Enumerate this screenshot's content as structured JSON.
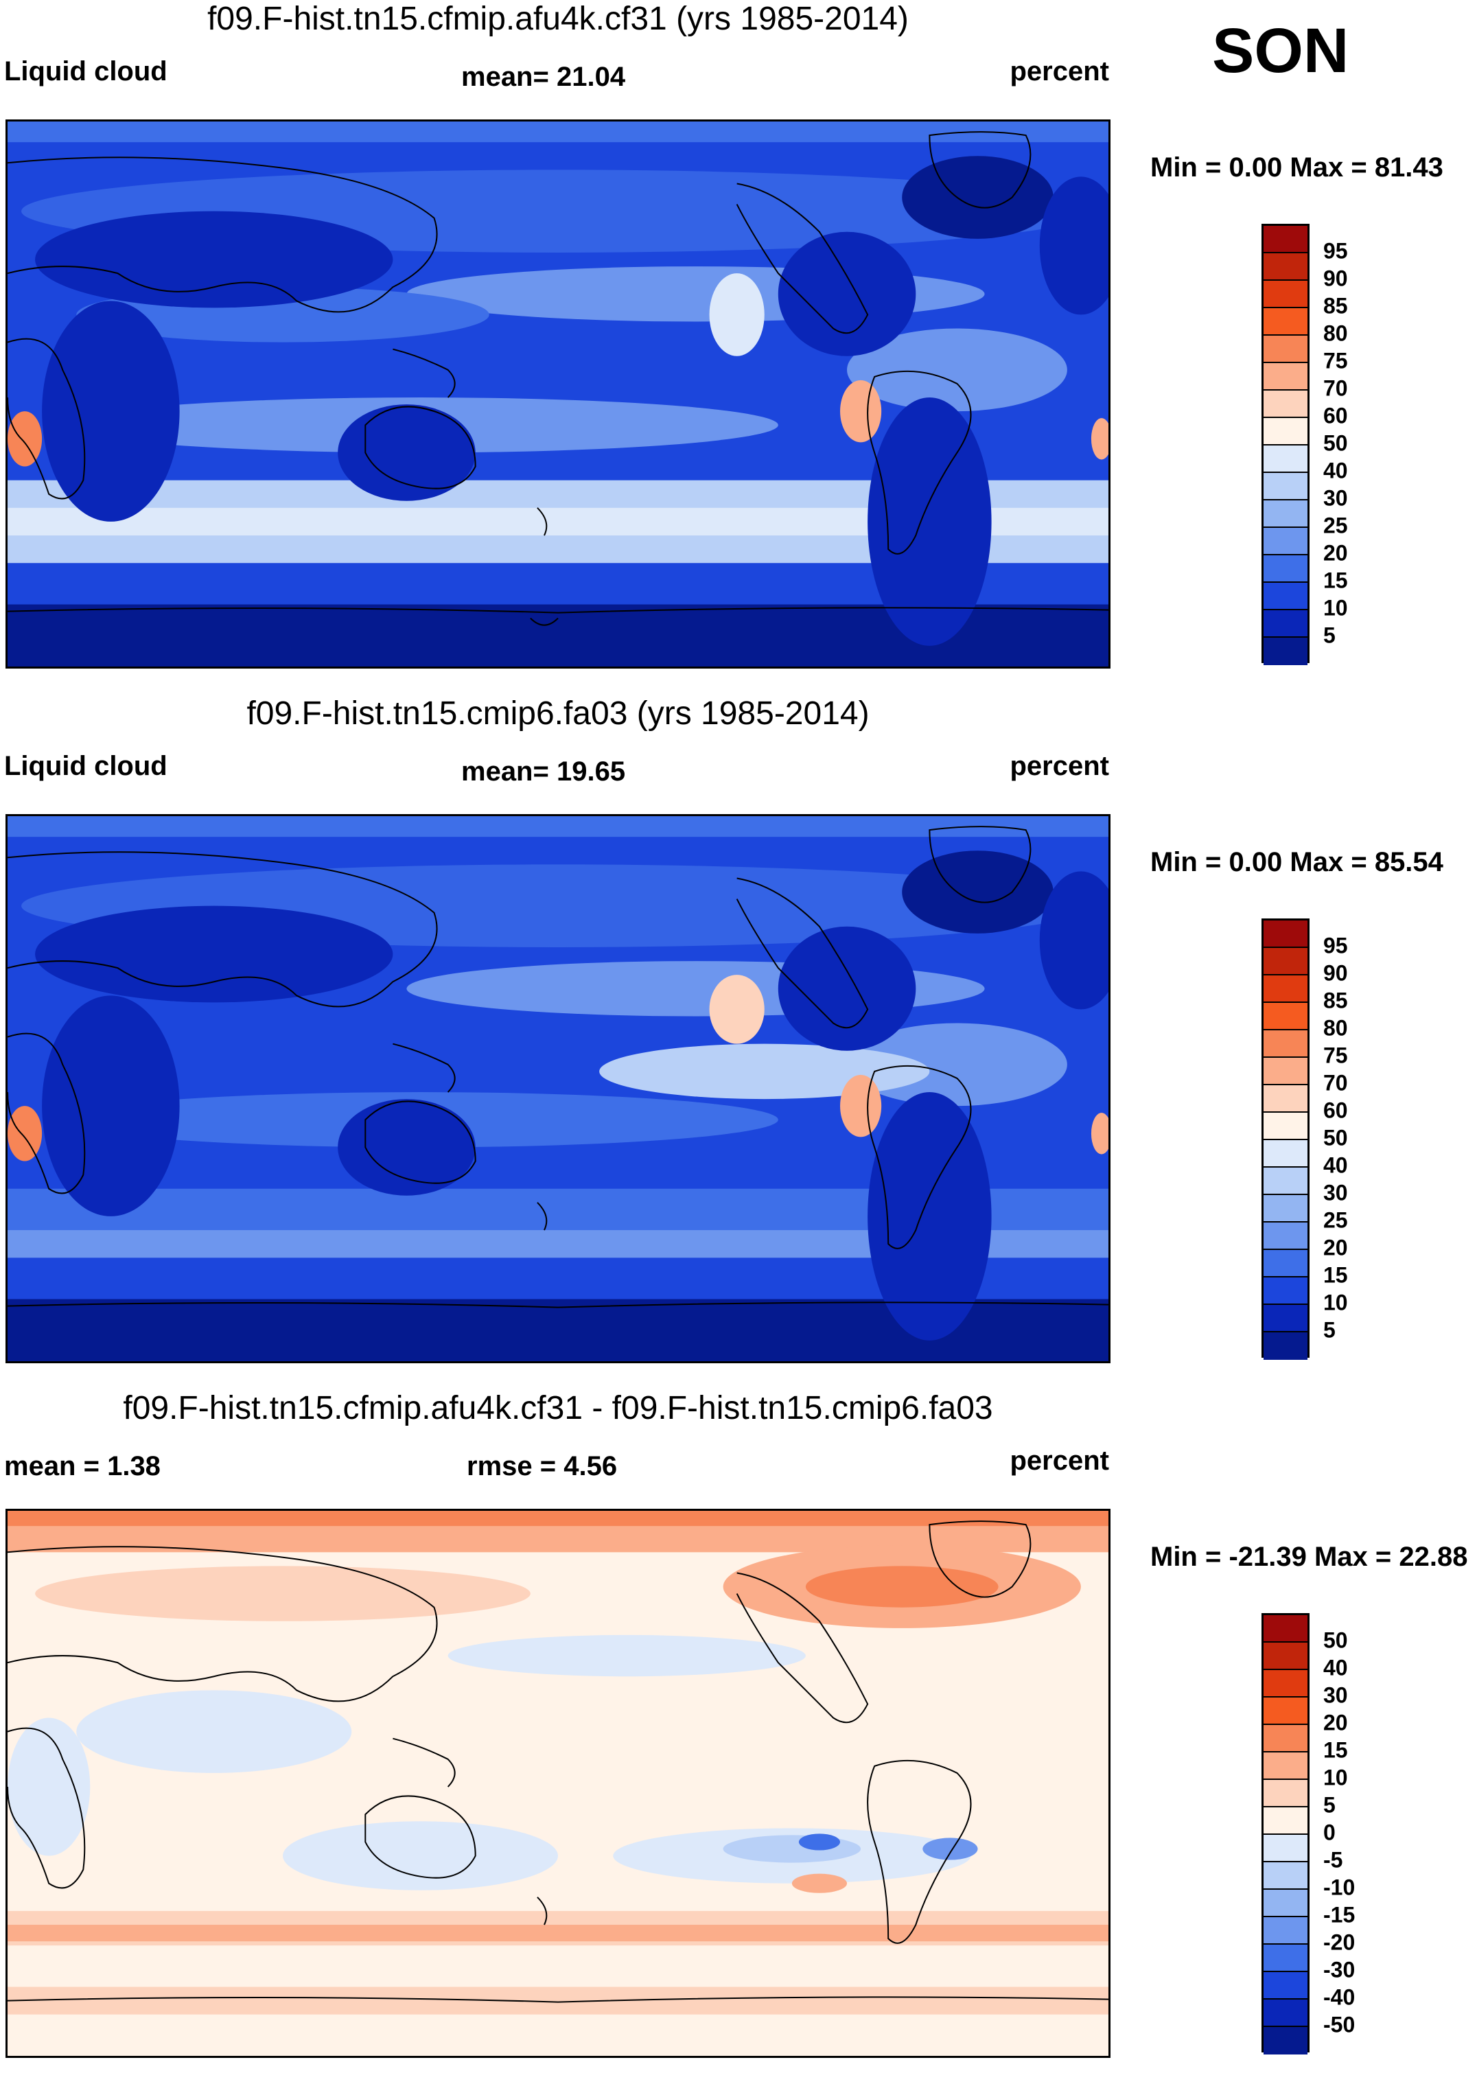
{
  "season": "SON",
  "panels": [
    {
      "title": "f09.F-hist.tn15.cfmip.afu4k.cf31 (yrs 1985-2014)",
      "left_label": "Liquid cloud",
      "center_label": "mean=  21.04",
      "units": "percent",
      "minmax": "Min =    0.00 Max =  81.43",
      "colorbar": {
        "labels": [
          "95",
          "90",
          "85",
          "80",
          "75",
          "70",
          "60",
          "50",
          "40",
          "30",
          "25",
          "20",
          "15",
          "10",
          "5"
        ],
        "colors": [
          "#9e0a0a",
          "#c1250b",
          "#e03b10",
          "#f55b20",
          "#f78556",
          "#fbad8a",
          "#fdd3bd",
          "#fff3e8",
          "#dde9fa",
          "#b8d0f7",
          "#93b5f2",
          "#6d96ee",
          "#3e6fe8",
          "#1c46dc",
          "#0a26b8",
          "#051a8f"
        ]
      }
    },
    {
      "title": "f09.F-hist.tn15.cmip6.fa03 (yrs 1985-2014)",
      "left_label": "Liquid cloud",
      "center_label": "mean=  19.65",
      "units": "percent",
      "minmax": "Min =    0.00 Max =  85.54",
      "colorbar": {
        "labels": [
          "95",
          "90",
          "85",
          "80",
          "75",
          "70",
          "60",
          "50",
          "40",
          "30",
          "25",
          "20",
          "15",
          "10",
          "5"
        ],
        "colors": [
          "#9e0a0a",
          "#c1250b",
          "#e03b10",
          "#f55b20",
          "#f78556",
          "#fbad8a",
          "#fdd3bd",
          "#fff3e8",
          "#dde9fa",
          "#b8d0f7",
          "#93b5f2",
          "#6d96ee",
          "#3e6fe8",
          "#1c46dc",
          "#0a26b8",
          "#051a8f"
        ]
      }
    },
    {
      "title": "f09.F-hist.tn15.cfmip.afu4k.cf31 - f09.F-hist.tn15.cmip6.fa03",
      "mean_label": "mean =    1.38",
      "rmse_label": "rmse =    4.56",
      "units": "percent",
      "minmax": "Min = -21.39 Max =  22.88",
      "colorbar": {
        "labels": [
          "50",
          "40",
          "30",
          "20",
          "15",
          "10",
          "5",
          "0",
          "-5",
          "-10",
          "-15",
          "-20",
          "-30",
          "-40",
          "-50"
        ],
        "colors": [
          "#9e0a0a",
          "#c1250b",
          "#e03b10",
          "#f55b20",
          "#f78556",
          "#fbad8a",
          "#fdd3bd",
          "#fff3e8",
          "#dde9fa",
          "#b8d0f7",
          "#93b5f2",
          "#6d96ee",
          "#3e6fe8",
          "#1c46dc",
          "#0a26b8",
          "#051a8f"
        ]
      }
    }
  ],
  "map_colors": {
    "abs_low": "#0a26b8",
    "abs_mid": "#3e6fe8",
    "abs_light": "#b8d0f7",
    "abs_high": "#f78556",
    "diff_pos": "#fbad8a",
    "diff_neutral": "#fff3e8",
    "diff_neg": "#b8d0f7",
    "coast": "#000000"
  }
}
